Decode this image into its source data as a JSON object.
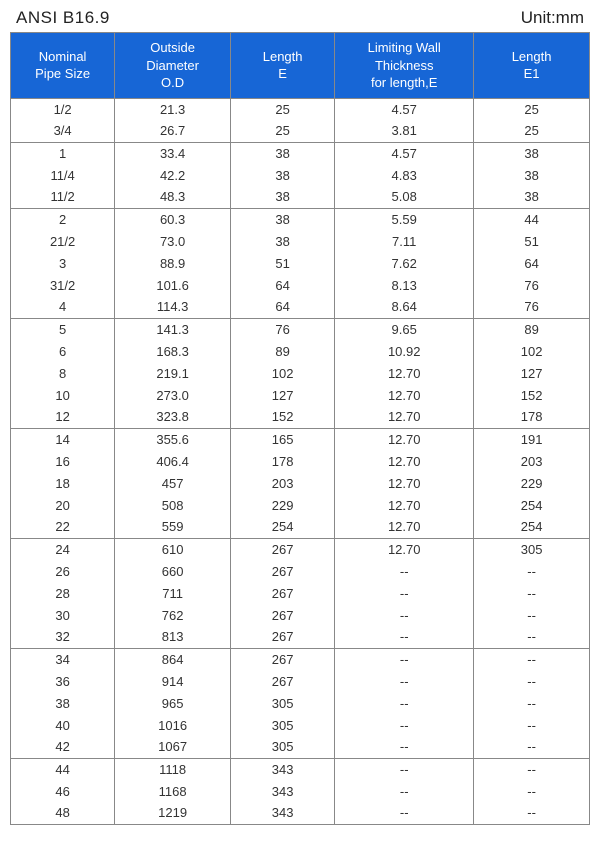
{
  "header": {
    "title_left": "ANSI B16.9",
    "title_right": "Unit:mm"
  },
  "table": {
    "header_bg": "#1766d6",
    "header_fg": "#ffffff",
    "border_color": "#888888",
    "text_color": "#333333",
    "font_size": 13,
    "columns": [
      {
        "label": "Nominal\nPipe Size",
        "width_pct": 18
      },
      {
        "label": "Outside\nDiameter\nO.D",
        "width_pct": 20
      },
      {
        "label": "Length\nE",
        "width_pct": 18
      },
      {
        "label": "Limiting Wall\nThickness\nfor length,E",
        "width_pct": 24
      },
      {
        "label": "Length\nE1",
        "width_pct": 20
      }
    ],
    "groups": [
      [
        [
          "1/2",
          "21.3",
          "25",
          "4.57",
          "25"
        ],
        [
          "3/4",
          "26.7",
          "25",
          "3.81",
          "25"
        ]
      ],
      [
        [
          "1",
          "33.4",
          "38",
          "4.57",
          "38"
        ],
        [
          "11/4",
          "42.2",
          "38",
          "4.83",
          "38"
        ],
        [
          "11/2",
          "48.3",
          "38",
          "5.08",
          "38"
        ]
      ],
      [
        [
          "2",
          "60.3",
          "38",
          "5.59",
          "44"
        ],
        [
          "21/2",
          "73.0",
          "38",
          "7.11",
          "51"
        ],
        [
          "3",
          "88.9",
          "51",
          "7.62",
          "64"
        ],
        [
          "31/2",
          "101.6",
          "64",
          "8.13",
          "76"
        ],
        [
          "4",
          "114.3",
          "64",
          "8.64",
          "76"
        ]
      ],
      [
        [
          "5",
          "141.3",
          "76",
          "9.65",
          "89"
        ],
        [
          "6",
          "168.3",
          "89",
          "10.92",
          "102"
        ],
        [
          "8",
          "219.1",
          "102",
          "12.70",
          "127"
        ],
        [
          "10",
          "273.0",
          "127",
          "12.70",
          "152"
        ],
        [
          "12",
          "323.8",
          "152",
          "12.70",
          "178"
        ]
      ],
      [
        [
          "14",
          "355.6",
          "165",
          "12.70",
          "191"
        ],
        [
          "16",
          "406.4",
          "178",
          "12.70",
          "203"
        ],
        [
          "18",
          "457",
          "203",
          "12.70",
          "229"
        ],
        [
          "20",
          "508",
          "229",
          "12.70",
          "254"
        ],
        [
          "22",
          "559",
          "254",
          "12.70",
          "254"
        ]
      ],
      [
        [
          "24",
          "610",
          "267",
          "12.70",
          "305"
        ],
        [
          "26",
          "660",
          "267",
          "--",
          "--"
        ],
        [
          "28",
          "711",
          "267",
          "--",
          "--"
        ],
        [
          "30",
          "762",
          "267",
          "--",
          "--"
        ],
        [
          "32",
          "813",
          "267",
          "--",
          "--"
        ]
      ],
      [
        [
          "34",
          "864",
          "267",
          "--",
          "--"
        ],
        [
          "36",
          "914",
          "267",
          "--",
          "--"
        ],
        [
          "38",
          "965",
          "305",
          "--",
          "--"
        ],
        [
          "40",
          "1016",
          "305",
          "--",
          "--"
        ],
        [
          "42",
          "1067",
          "305",
          "--",
          "--"
        ]
      ],
      [
        [
          "44",
          "1118",
          "343",
          "--",
          "--"
        ],
        [
          "46",
          "1168",
          "343",
          "--",
          "--"
        ],
        [
          "48",
          "1219",
          "343",
          "--",
          "--"
        ]
      ]
    ]
  }
}
